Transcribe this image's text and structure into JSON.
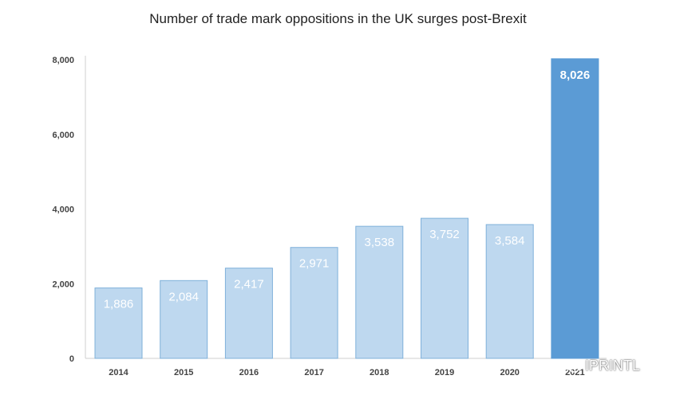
{
  "chart_data": {
    "type": "bar",
    "title": "Number of trade mark oppositions in the UK surges post-Brexit",
    "categories": [
      "2014",
      "2015",
      "2016",
      "2017",
      "2018",
      "2019",
      "2020",
      "2021"
    ],
    "values": [
      1886,
      2084,
      2417,
      2971,
      3538,
      3752,
      3584,
      8026
    ],
    "value_labels": [
      "1,886",
      "2,084",
      "2,417",
      "2,971",
      "3,538",
      "3,752",
      "3,584",
      "8,026"
    ],
    "yticks": [
      0,
      2000,
      4000,
      6000,
      8000
    ],
    "ytick_labels": [
      "0",
      "2,000",
      "4,000",
      "6,000",
      "8,000"
    ],
    "ylim": [
      0,
      8000
    ],
    "xlabel": "",
    "ylabel": "",
    "grid": false,
    "colors": {
      "bar": "#bed8ef",
      "bar_stroke": "#7fb0da",
      "highlight_bar": "#5b9bd5",
      "axis": "#cfcfcf"
    },
    "highlight_index": 7
  },
  "watermark": {
    "icon": "wechat-icon",
    "text": "IPRINTL"
  }
}
